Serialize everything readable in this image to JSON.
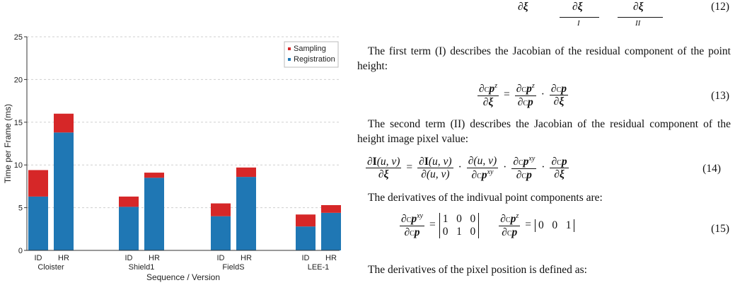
{
  "figure": {
    "chart_data": {
      "type": "bar",
      "stacked": true,
      "ylabel": "Time per Frame (ms)",
      "xlabel": "Sequence / Version",
      "ylim": [
        0,
        25
      ],
      "yticks": [
        0,
        5,
        10,
        15,
        20,
        25
      ],
      "grid": "horizontal dashed",
      "legend_position": "top-right",
      "groups": [
        "Cloister",
        "Shield1",
        "FieldS",
        "LEE-1"
      ],
      "versions": [
        "ID",
        "HR"
      ],
      "categories": [
        "ID",
        "HR",
        "ID",
        "HR",
        "ID",
        "HR",
        "ID",
        "HR"
      ],
      "series": [
        {
          "name": "Registration",
          "color": "#1f77b4",
          "values": [
            6.3,
            13.8,
            5.1,
            8.5,
            4.0,
            8.6,
            2.8,
            4.4
          ]
        },
        {
          "name": "Sampling",
          "color": "#d62728",
          "values": [
            3.1,
            2.2,
            1.2,
            0.6,
            1.5,
            1.1,
            1.4,
            0.9
          ]
        }
      ]
    }
  },
  "text": {
    "eq12_num": "(12)",
    "eq12_sym": "∂ξ",
    "eq12_t1": "∂ξ",
    "eq12_t2": "∂ξ",
    "eq12_b1": "I",
    "eq12_b2": "II",
    "p1": "The first term (I) describes the Jacobian of the residual component of the point height:",
    "eq13_num": "(13)",
    "p2": "The second term (II) describes the Jacobian of the residual component of the height image pixel value:",
    "eq14_num": "(14)",
    "p3": "The derivatives of the indivual point components are:",
    "eq15_num": "(15)",
    "p4": "The derivatives of the pixel position is defined as:"
  }
}
